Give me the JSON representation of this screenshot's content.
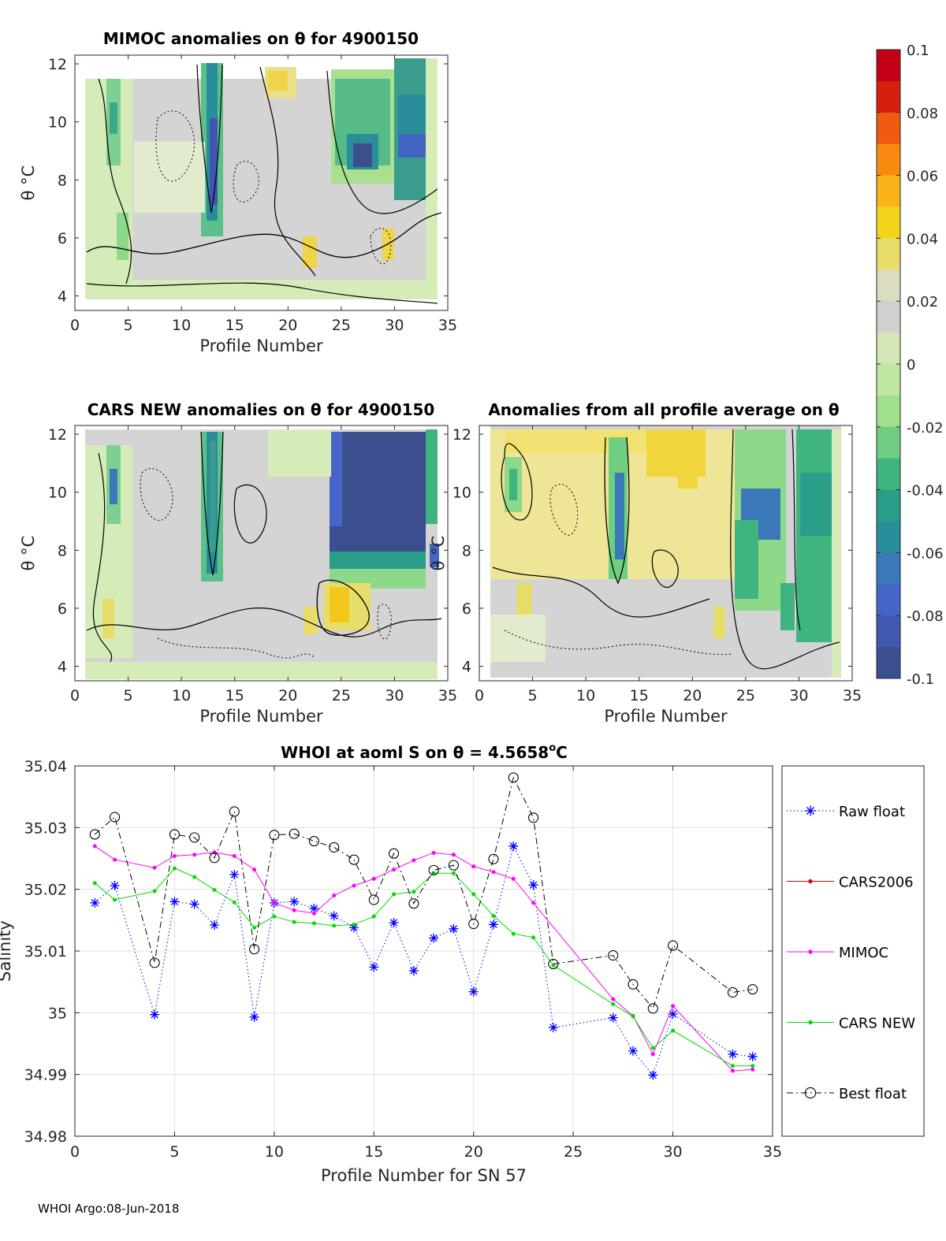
{
  "chart_data": [
    {
      "type": "heatmap",
      "title": "MIMOC anomalies on θ  for 4900150",
      "xlabel": "Profile Number",
      "ylabel": "θ °C",
      "xlim": [
        0,
        35
      ],
      "ylim": [
        3.5,
        12.3
      ],
      "xticks": [
        0,
        5,
        10,
        15,
        20,
        25,
        30,
        35
      ],
      "yticks": [
        4,
        6,
        8,
        10,
        12
      ]
    },
    {
      "type": "heatmap",
      "title": "CARS NEW anomalies on θ for 4900150",
      "xlabel": "Profile Number",
      "ylabel": "θ °C",
      "xlim": [
        0,
        35
      ],
      "ylim": [
        3.5,
        12.3
      ],
      "xticks": [
        0,
        5,
        10,
        15,
        20,
        25,
        30,
        35
      ],
      "yticks": [
        4,
        6,
        8,
        10,
        12
      ]
    },
    {
      "type": "heatmap",
      "title": "Anomalies from all profile average on θ",
      "xlabel": "Profile Number",
      "ylabel": "θ °C",
      "xlim": [
        0,
        35
      ],
      "ylim": [
        3.5,
        12.3
      ],
      "xticks": [
        0,
        5,
        10,
        15,
        20,
        25,
        30,
        35
      ],
      "yticks": [
        4,
        6,
        8,
        10,
        12
      ]
    },
    {
      "type": "colorbar",
      "range": [
        -0.1,
        0.1
      ],
      "ticks": [
        "0.1",
        "0.08",
        "0.06",
        "0.04",
        "0.02",
        "0",
        "-0.02",
        "-0.04",
        "-0.06",
        "-0.08",
        "-0.1"
      ],
      "colors": [
        "#c50014",
        "#d6200f",
        "#ee5a10",
        "#f88a10",
        "#fab41a",
        "#f2d41a",
        "#e7dd6b",
        "#dcdcc0",
        "#d0d0d0",
        "#d4e6b6",
        "#bfe8a0",
        "#9ee08c",
        "#6fce80",
        "#3fb47e",
        "#2a9e88",
        "#2a8e9a",
        "#3a78b8",
        "#4565c8",
        "#405ab0",
        "#3b4f8f"
      ]
    },
    {
      "type": "line",
      "title": "WHOI at aoml S on θ = 4.5658",
      "title_sup": "o",
      "title_end": "C",
      "xlabel": "Profile Number for SN 57",
      "ylabel": "Salinity",
      "xlim": [
        0,
        35
      ],
      "ylim": [
        34.98,
        35.04
      ],
      "xticks": [
        0,
        5,
        10,
        15,
        20,
        25,
        30,
        35
      ],
      "yticks": [
        34.98,
        34.99,
        35,
        35.01,
        35.02,
        35.03,
        35.04
      ],
      "ytick_labels": [
        "34.98",
        "34.99",
        "35",
        "35.01",
        "35.02",
        "35.03",
        "35.04"
      ],
      "grid": true,
      "legend_position": "outside-right",
      "series": [
        {
          "name": "Raw float",
          "color": "#0000ff",
          "style": "dotted",
          "marker": "asterisk",
          "x": [
            1,
            2,
            4,
            5,
            6,
            7,
            8,
            9,
            10,
            11,
            12,
            13,
            14,
            15,
            16,
            17,
            18,
            19,
            20,
            21,
            22,
            23,
            24,
            27,
            28,
            29,
            30,
            33,
            34
          ],
          "y": [
            35.0178,
            35.0206,
            34.9997,
            35.018,
            35.0176,
            35.0142,
            35.0224,
            34.9993,
            35.0178,
            35.018,
            35.0169,
            35.0157,
            35.0138,
            35.0074,
            35.0146,
            35.0068,
            35.0121,
            35.0136,
            35.0034,
            35.0143,
            35.027,
            35.0207,
            34.9976,
            34.9992,
            34.9938,
            34.9899,
            34.9998,
            34.9933,
            34.9929
          ]
        },
        {
          "name": "CARS2006",
          "color": "#e00000",
          "style": "solid",
          "marker": "dot",
          "x": [],
          "y": []
        },
        {
          "name": "MIMOC",
          "color": "#ff00ff",
          "style": "solid",
          "marker": "dot",
          "x": [
            1,
            2,
            4,
            5,
            6,
            7,
            8,
            9,
            10,
            11,
            12,
            13,
            14,
            15,
            16,
            17,
            18,
            19,
            20,
            21,
            22,
            23,
            27,
            28,
            29,
            30,
            33,
            34
          ],
          "y": [
            35.027,
            35.0248,
            35.0235,
            35.0254,
            35.0256,
            35.026,
            35.0254,
            35.0232,
            35.0178,
            35.0166,
            35.0161,
            35.019,
            35.0206,
            35.0217,
            35.0232,
            35.0247,
            35.0259,
            35.0256,
            35.0237,
            35.0228,
            35.0217,
            35.0178,
            35.0022,
            34.9995,
            34.9933,
            35.0011,
            34.9906,
            34.9908
          ]
        },
        {
          "name": "CARS NEW",
          "color": "#00dd00",
          "style": "solid",
          "marker": "dot",
          "x": [
            1,
            2,
            4,
            5,
            6,
            7,
            8,
            9,
            10,
            11,
            12,
            13,
            14,
            15,
            16,
            17,
            18,
            19,
            20,
            21,
            22,
            23,
            24,
            27,
            28,
            29,
            30,
            33,
            34
          ],
          "y": [
            35.021,
            35.0183,
            35.0197,
            35.0234,
            35.022,
            35.0199,
            35.0179,
            35.0138,
            35.0156,
            35.0147,
            35.0145,
            35.0141,
            35.0143,
            35.0156,
            35.0192,
            35.0196,
            35.0226,
            35.0226,
            35.0192,
            35.0157,
            35.0128,
            35.0122,
            35.0077,
            35.0014,
            34.9994,
            34.9943,
            34.9971,
            34.9914,
            34.9914
          ]
        },
        {
          "name": "Best float",
          "color": "#000000",
          "style": "dashdot",
          "marker": "circle",
          "x": [
            1,
            2,
            4,
            5,
            6,
            7,
            8,
            9,
            10,
            11,
            12,
            13,
            14,
            15,
            16,
            17,
            18,
            19,
            20,
            21,
            22,
            23,
            24,
            27,
            28,
            29,
            30,
            33,
            34
          ],
          "y": [
            35.0289,
            35.0317,
            35.0081,
            35.0289,
            35.0284,
            35.0251,
            35.0326,
            35.0103,
            35.0288,
            35.029,
            35.0278,
            35.0268,
            35.0248,
            35.0183,
            35.0258,
            35.0177,
            35.0231,
            35.0239,
            35.0144,
            35.0249,
            35.0381,
            35.0316,
            35.0079,
            35.0093,
            35.0046,
            35.0007,
            35.0109,
            35.0033,
            35.0038
          ]
        }
      ]
    }
  ],
  "footer": "WHOI Argo:08-Jun-2018"
}
